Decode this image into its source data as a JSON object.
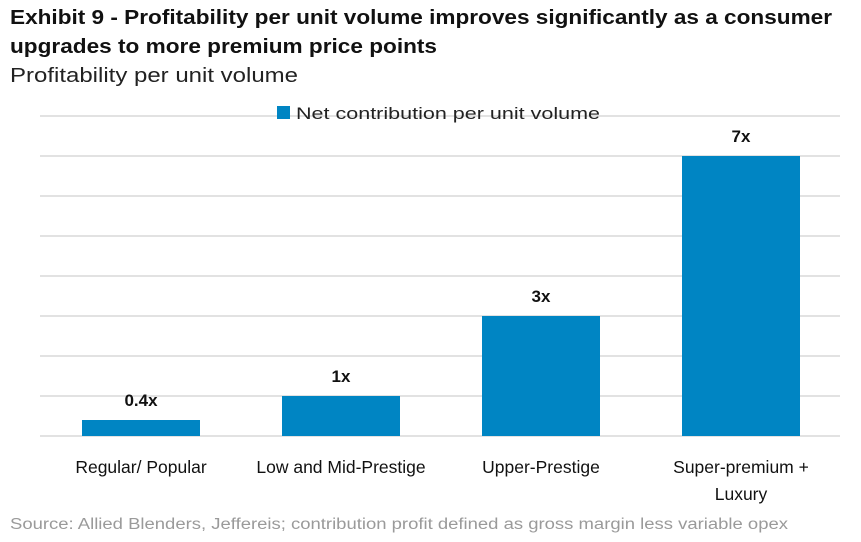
{
  "title_line1": "Exhibit 9 - Profitability per unit volume improves significantly as a consumer",
  "title_line2": "upgrades to more premium price points",
  "subtitle": "Profitability per unit volume",
  "source": "Source: Allied Blenders, Jeffereis; contribution profit defined as gross margin less variable opex",
  "colors": {
    "bar": "#0085C3",
    "grid": "#D9D9D9",
    "source": "#9A9A9A"
  },
  "chart_data": {
    "type": "bar",
    "title": "Profitability per unit volume",
    "legend": {
      "entries": [
        "Net contribution per unit volume"
      ],
      "placement": "top"
    },
    "categories": [
      [
        "Regular/ Popular"
      ],
      [
        "Low and Mid-Prestige"
      ],
      [
        "Upper-Prestige"
      ],
      [
        "Super-premium +",
        "Luxury"
      ]
    ],
    "series": [
      {
        "name": "Net contribution per unit volume",
        "values": [
          0.4,
          1,
          3,
          7
        ]
      }
    ],
    "data_labels": [
      "0.4x",
      "1x",
      "3x",
      "7x"
    ],
    "ylim": [
      0,
      8
    ],
    "ytick_step": 1,
    "grid": true,
    "xlabel": "",
    "ylabel": ""
  }
}
